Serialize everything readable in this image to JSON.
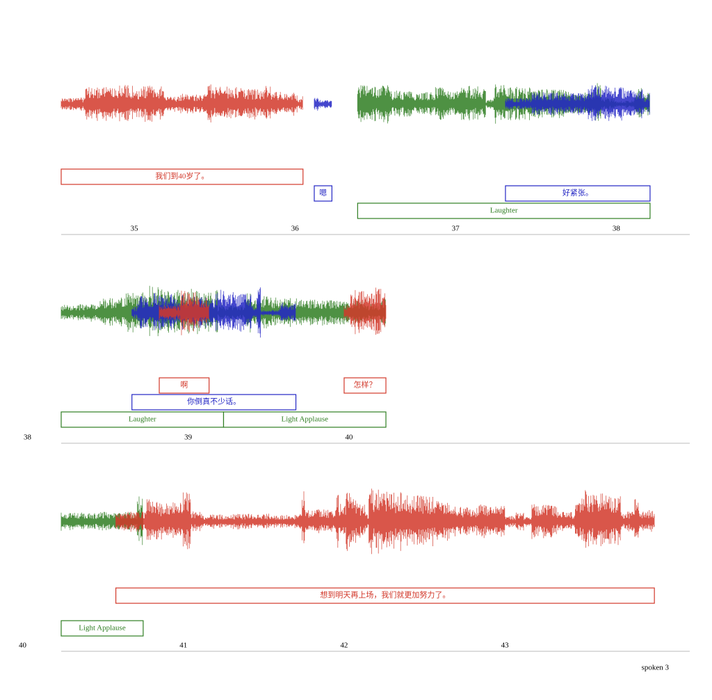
{
  "rows": [
    {
      "xlim": [
        34.545,
        38.457
      ],
      "ticks": [
        35,
        36,
        37,
        38
      ],
      "segments": [
        {
          "label": "我们到40岁了。",
          "start": 34.545,
          "end": 36.05,
          "color": "#d2382a"
        },
        {
          "label": "嗯",
          "start": 36.12,
          "end": 36.23,
          "color": "#2326c4"
        },
        {
          "label": "Laughter",
          "start": 36.39,
          "end": 38.21,
          "color": "#2f7e22"
        },
        {
          "label": "好紧张。",
          "start": 37.31,
          "end": 38.21,
          "color": "#2326c4"
        }
      ]
    },
    {
      "xlim": [
        38.21,
        42.12
      ],
      "ticks": [
        38,
        39,
        40
      ],
      "segments": [
        {
          "label": "Laughter",
          "start": 38.21,
          "end": 39.22,
          "color": "#2f7e22"
        },
        {
          "label": "你倒真不少话。",
          "start": 38.65,
          "end": 39.67,
          "color": "#2326c4"
        },
        {
          "label": "啊",
          "start": 38.82,
          "end": 39.13,
          "color": "#d2382a"
        },
        {
          "label": "Light Applause",
          "start": 39.22,
          "end": 40.23,
          "color": "#2f7e22"
        },
        {
          "label": "怎样？",
          "start": 39.97,
          "end": 40.23,
          "color": "#d2382a"
        }
      ]
    },
    {
      "xlim": [
        40.24,
        44.15
      ],
      "ticks": [
        40,
        41,
        42,
        43
      ],
      "segments": [
        {
          "label": "Light Applause",
          "start": 40.24,
          "end": 40.75,
          "color": "#2f7e22"
        },
        {
          "label": "想到明天再上场，我们就更加努力了。",
          "start": 40.58,
          "end": 43.93,
          "color": "#d2382a"
        }
      ]
    }
  ],
  "footer": "spoken 3"
}
